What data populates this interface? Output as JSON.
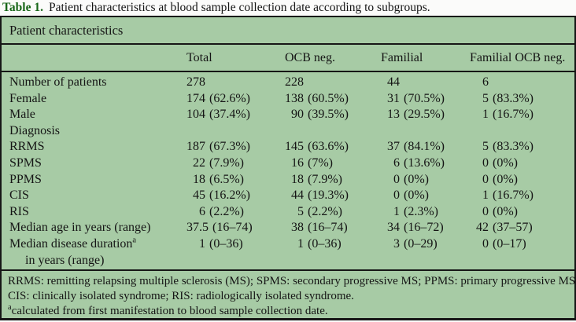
{
  "caption": {
    "label": "Table 1.",
    "text": "Patient characteristics at blood sample collection date according to subgroups."
  },
  "colors": {
    "table_background": "#a7cba5",
    "caption_accent_green": "#176617",
    "rule_color": "#161616"
  },
  "table": {
    "section_header": "Patient characteristics",
    "columns": [
      "Total",
      "OCB neg.",
      "Familial",
      "Familial OCB neg."
    ],
    "rows": [
      {
        "label": "Number of patients",
        "cells": [
          {
            "n": "278"
          },
          {
            "n": "228"
          },
          {
            "n": "44"
          },
          {
            "n": "6"
          }
        ]
      },
      {
        "label": "Female",
        "cells": [
          {
            "n": "174",
            "r": "(62.6%)"
          },
          {
            "n": "138",
            "r": "(60.5%)"
          },
          {
            "n": "31",
            "r": "(70.5%)"
          },
          {
            "n": "5",
            "r": "(83.3%)"
          }
        ]
      },
      {
        "label": "Male",
        "cells": [
          {
            "n": "104",
            "r": "(37.4%)"
          },
          {
            "n": "90",
            "r": "(39.5%)"
          },
          {
            "n": "13",
            "r": "(29.5%)"
          },
          {
            "n": "1",
            "r": "(16.7%)"
          }
        ]
      },
      {
        "label": "Diagnosis",
        "cells": []
      },
      {
        "label": "RRMS",
        "cells": [
          {
            "n": "187",
            "r": "(67.3%)"
          },
          {
            "n": "145",
            "r": "(63.6%)"
          },
          {
            "n": "37",
            "r": "(84.1%)"
          },
          {
            "n": "5",
            "r": "(83.3%)"
          }
        ]
      },
      {
        "label": "SPMS",
        "cells": [
          {
            "n": "22",
            "r": "(7.9%)"
          },
          {
            "n": "16",
            "r": "(7%)"
          },
          {
            "n": "6",
            "r": "(13.6%)"
          },
          {
            "n": "0",
            "r": "(0%)"
          }
        ]
      },
      {
        "label": "PPMS",
        "cells": [
          {
            "n": "18",
            "r": "(6.5%)"
          },
          {
            "n": "18",
            "r": "(7.9%)"
          },
          {
            "n": "0",
            "r": "(0%)"
          },
          {
            "n": "0",
            "r": "(0%)"
          }
        ]
      },
      {
        "label": "CIS",
        "cells": [
          {
            "n": "45",
            "r": "(16.2%)"
          },
          {
            "n": "44",
            "r": "(19.3%)"
          },
          {
            "n": "0",
            "r": "(0%)"
          },
          {
            "n": "1",
            "r": "(16.7%)"
          }
        ]
      },
      {
        "label": "RIS",
        "cells": [
          {
            "n": "6",
            "r": "(2.2%)"
          },
          {
            "n": "5",
            "r": "(2.2%)"
          },
          {
            "n": "1",
            "r": "(2.3%)"
          },
          {
            "n": "0",
            "r": "(0%)"
          }
        ]
      },
      {
        "label": "Median age in years (range)",
        "cells": [
          {
            "n": "37.5",
            "r": "(16–74)"
          },
          {
            "n": "38",
            "r": "(16–74)"
          },
          {
            "n": "34",
            "r": "(16–72)"
          },
          {
            "n": "42",
            "r": "(37–57)"
          }
        ]
      },
      {
        "label": "Median disease duration",
        "label_sup": "a",
        "label2": "in years (range)",
        "cells": [
          {
            "n": "1",
            "r": "(0–36)"
          },
          {
            "n": "1",
            "r": "(0–36)"
          },
          {
            "n": "3",
            "r": "(0–29)"
          },
          {
            "n": "0",
            "r": "(0–17)"
          }
        ]
      }
    ],
    "footnotes": [
      {
        "text": "RRMS: remitting relapsing multiple sclerosis (MS); SPMS: secondary progressive MS; PPMS: primary progressive MS;"
      },
      {
        "text": "CIS: clinically isolated syndrome; RIS: radiologically isolated syndrome."
      },
      {
        "sup": "a",
        "text": "calculated from first manifestation to blood sample collection date."
      }
    ]
  }
}
